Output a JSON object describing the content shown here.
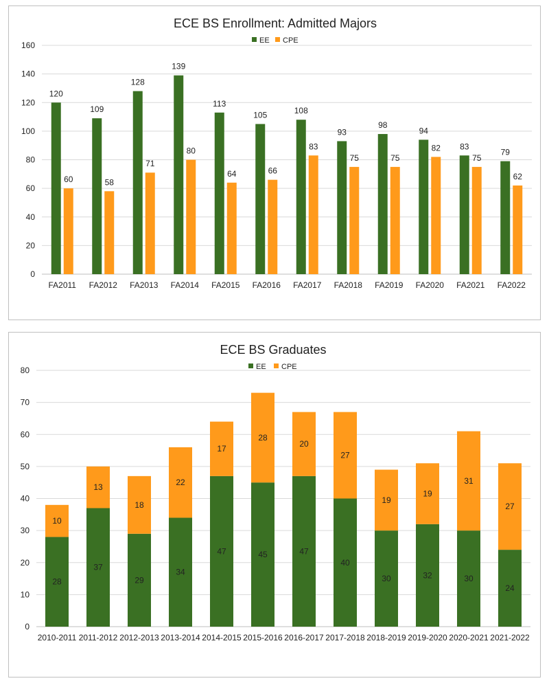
{
  "chart_data": [
    {
      "type": "bar",
      "title": "ECE BS Enrollment: Admitted Majors",
      "categories": [
        "FA2011",
        "FA2012",
        "FA2013",
        "FA2014",
        "FA2015",
        "FA2016",
        "FA2017",
        "FA2018",
        "FA2019",
        "FA2020",
        "FA2021",
        "FA2022"
      ],
      "series": [
        {
          "name": "EE",
          "color": "#3a7023",
          "values": [
            120,
            109,
            128,
            139,
            113,
            105,
            108,
            93,
            98,
            94,
            83,
            79
          ]
        },
        {
          "name": "CPE",
          "color": "#ff9a1b",
          "values": [
            60,
            58,
            71,
            80,
            64,
            66,
            83,
            75,
            75,
            82,
            75,
            62
          ]
        }
      ],
      "ylim": [
        0,
        160
      ],
      "yticks": [
        0,
        20,
        40,
        60,
        80,
        100,
        120,
        140,
        160
      ],
      "grid": true,
      "legend": "top-center",
      "xlabel": "",
      "ylabel": ""
    },
    {
      "type": "bar",
      "stacked": true,
      "title": "ECE BS Graduates",
      "categories": [
        "2010-2011",
        "2011-2012",
        "2012-2013",
        "2013-2014",
        "2014-2015",
        "2015-2016",
        "2016-2017",
        "2017-2018",
        "2018-2019",
        "2019-2020",
        "2020-2021",
        "2021-2022"
      ],
      "series": [
        {
          "name": "EE",
          "color": "#3a7023",
          "values": [
            28,
            37,
            29,
            34,
            47,
            45,
            47,
            40,
            30,
            32,
            30,
            24
          ]
        },
        {
          "name": "CPE",
          "color": "#ff9a1b",
          "values": [
            10,
            13,
            18,
            22,
            17,
            28,
            20,
            27,
            19,
            19,
            31,
            27
          ]
        }
      ],
      "ylim": [
        0,
        80
      ],
      "yticks": [
        0,
        10,
        20,
        30,
        40,
        50,
        60,
        70,
        80
      ],
      "grid": true,
      "legend": "top-center",
      "xlabel": "",
      "ylabel": ""
    }
  ]
}
